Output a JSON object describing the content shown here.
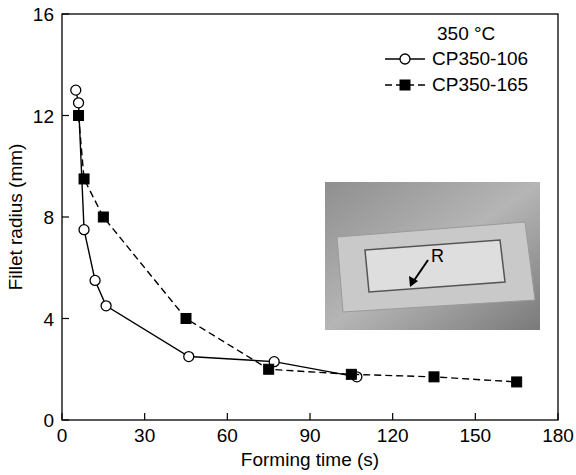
{
  "chart_data": {
    "type": "line",
    "x_label": "Forming time (s)",
    "y_label": "Fillet radius (mm)",
    "xlim": [
      0,
      180
    ],
    "xticks": [
      0,
      30,
      60,
      90,
      120,
      150,
      180
    ],
    "ylim": [
      0,
      16
    ],
    "yticks": [
      0,
      4,
      8,
      12,
      16
    ],
    "legend": "upper right",
    "grid": false,
    "annotations": [
      "350 °C",
      "R"
    ],
    "series": [
      {
        "name": "CP350-106",
        "color": "#000000",
        "marker": "circle",
        "line_style": "solid",
        "x": [
          5,
          6,
          8,
          12,
          16,
          46,
          77,
          107
        ],
        "values": [
          13.0,
          12.5,
          7.5,
          5.5,
          4.5,
          2.5,
          2.3,
          1.7
        ]
      },
      {
        "name": "CP350-165",
        "color": "#000000",
        "marker": "square",
        "line_style": "dashed",
        "x": [
          6,
          8,
          15,
          45,
          75,
          105,
          135,
          165
        ],
        "values": [
          12.0,
          9.5,
          8.0,
          4.0,
          2.0,
          1.8,
          1.7,
          1.5
        ]
      }
    ]
  }
}
